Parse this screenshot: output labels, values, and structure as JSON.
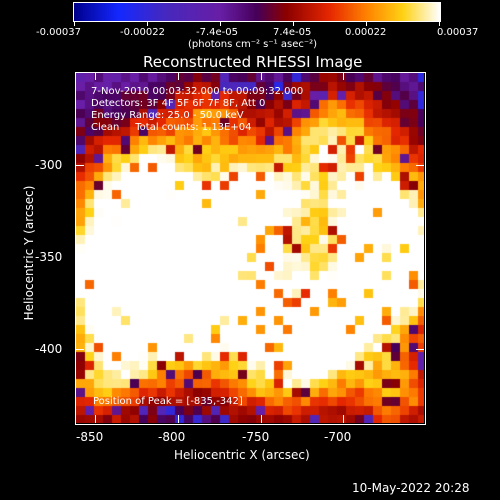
{
  "colorbar": {
    "tick_labels": [
      "-0.00037",
      "-0.00022",
      "-7.4e-05",
      "7.4e-05",
      "0.00022",
      "0.00037"
    ],
    "unit_label": "(photons cm⁻² s⁻¹ asec⁻²)",
    "min": -0.00037,
    "max": 0.00037
  },
  "image": {
    "title": "Reconstructed RHESSI Image",
    "info_lines": [
      "7-Nov-2010 00:03:32.000 to 00:09:32.000",
      "Detectors: 3F 4F 5F 6F 7F 8F, Att 0",
      "Energy Range: 25.0 - 50.0 keV",
      "Clean     Total counts: 1.13E+04"
    ],
    "peak_text": "Position of Peak = [-835,-342]",
    "x_axis_label": "Heliocentric X (arcsec)",
    "y_axis_label": "Heliocentric Y (arcsec)",
    "x_ticks": [
      "-850",
      "-800",
      "-750",
      "-700"
    ],
    "y_ticks": [
      "-300",
      "-350",
      "-400"
    ],
    "colormap": "rainbow-hot (blue-purple-red-orange-yellow)"
  },
  "footer": {
    "timestamp": "10-May-2022 20:28"
  }
}
